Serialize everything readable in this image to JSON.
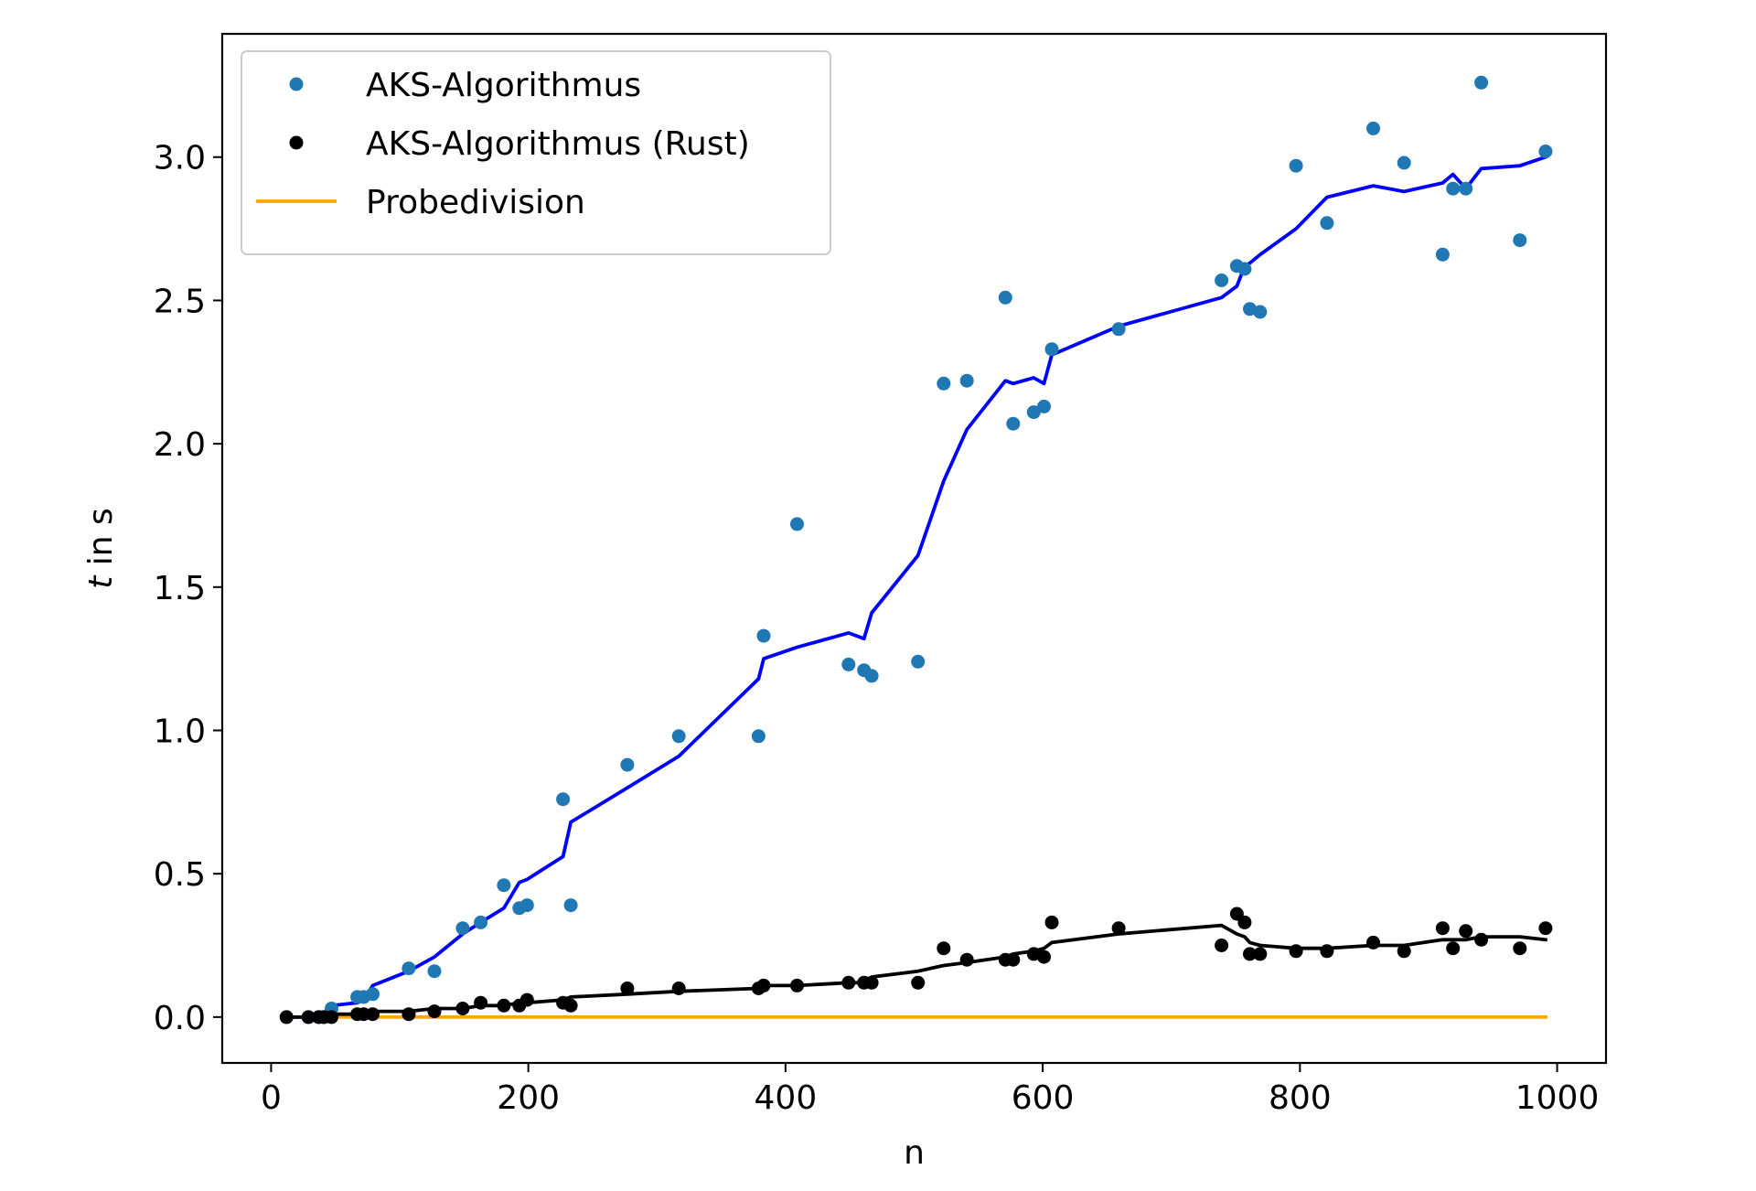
{
  "chart_data": {
    "type": "scatter",
    "xlabel": "n",
    "ylabel_italic": "t",
    "ylabel_rest": " in s",
    "xlim": [
      -38,
      1038
    ],
    "ylim": [
      -0.16,
      3.43
    ],
    "xticks": [
      0,
      200,
      400,
      600,
      800,
      1000
    ],
    "xtick_labels": [
      "0",
      "200",
      "400",
      "600",
      "800",
      "1000"
    ],
    "yticks": [
      0.0,
      0.5,
      1.0,
      1.5,
      2.0,
      2.5,
      3.0
    ],
    "ytick_labels": [
      "0.0",
      "0.5",
      "1.0",
      "1.5",
      "2.0",
      "2.5",
      "3.0"
    ],
    "grid": false,
    "legend_position": "upper-left",
    "series": [
      {
        "name": "AKS-Algorithmus",
        "kind": "scatter",
        "color": "#1f77b4",
        "points": [
          [
            12,
            0.0
          ],
          [
            29,
            0.0
          ],
          [
            37,
            0.0
          ],
          [
            41,
            0.0
          ],
          [
            47,
            0.03
          ],
          [
            67,
            0.07
          ],
          [
            72,
            0.07
          ],
          [
            79,
            0.08
          ],
          [
            107,
            0.17
          ],
          [
            127,
            0.16
          ],
          [
            149,
            0.31
          ],
          [
            163,
            0.33
          ],
          [
            181,
            0.46
          ],
          [
            193,
            0.38
          ],
          [
            199,
            0.39
          ],
          [
            227,
            0.76
          ],
          [
            233,
            0.39
          ],
          [
            277,
            0.88
          ],
          [
            317,
            0.98
          ],
          [
            379,
            0.98
          ],
          [
            383,
            1.33
          ],
          [
            409,
            1.72
          ],
          [
            449,
            1.23
          ],
          [
            461,
            1.21
          ],
          [
            467,
            1.19
          ],
          [
            503,
            1.24
          ],
          [
            523,
            2.21
          ],
          [
            541,
            2.22
          ],
          [
            571,
            2.51
          ],
          [
            577,
            2.07
          ],
          [
            593,
            2.11
          ],
          [
            601,
            2.13
          ],
          [
            607,
            2.33
          ],
          [
            659,
            2.4
          ],
          [
            739,
            2.57
          ],
          [
            751,
            2.62
          ],
          [
            757,
            2.61
          ],
          [
            761,
            2.47
          ],
          [
            769,
            2.46
          ],
          [
            797,
            2.97
          ],
          [
            821,
            2.77
          ],
          [
            857,
            3.1
          ],
          [
            881,
            2.98
          ],
          [
            911,
            2.66
          ],
          [
            919,
            2.89
          ],
          [
            929,
            2.89
          ],
          [
            941,
            3.26
          ],
          [
            971,
            2.71
          ],
          [
            991,
            3.02
          ]
        ]
      },
      {
        "name": "AKS-Algorithmus (Rust)",
        "kind": "scatter",
        "color": "#000000",
        "points": [
          [
            12,
            0.0
          ],
          [
            29,
            0.0
          ],
          [
            37,
            0.0
          ],
          [
            41,
            0.0
          ],
          [
            47,
            0.0
          ],
          [
            67,
            0.01
          ],
          [
            72,
            0.01
          ],
          [
            79,
            0.01
          ],
          [
            107,
            0.01
          ],
          [
            127,
            0.02
          ],
          [
            149,
            0.03
          ],
          [
            163,
            0.05
          ],
          [
            181,
            0.04
          ],
          [
            193,
            0.04
          ],
          [
            199,
            0.06
          ],
          [
            227,
            0.05
          ],
          [
            233,
            0.04
          ],
          [
            277,
            0.1
          ],
          [
            317,
            0.1
          ],
          [
            379,
            0.1
          ],
          [
            383,
            0.11
          ],
          [
            409,
            0.11
          ],
          [
            449,
            0.12
          ],
          [
            461,
            0.12
          ],
          [
            467,
            0.12
          ],
          [
            503,
            0.12
          ],
          [
            523,
            0.24
          ],
          [
            541,
            0.2
          ],
          [
            571,
            0.2
          ],
          [
            577,
            0.2
          ],
          [
            593,
            0.22
          ],
          [
            601,
            0.21
          ],
          [
            607,
            0.33
          ],
          [
            659,
            0.31
          ],
          [
            739,
            0.25
          ],
          [
            751,
            0.36
          ],
          [
            757,
            0.33
          ],
          [
            761,
            0.22
          ],
          [
            769,
            0.22
          ],
          [
            797,
            0.23
          ],
          [
            821,
            0.23
          ],
          [
            857,
            0.26
          ],
          [
            881,
            0.23
          ],
          [
            911,
            0.31
          ],
          [
            919,
            0.24
          ],
          [
            929,
            0.3
          ],
          [
            941,
            0.27
          ],
          [
            971,
            0.24
          ],
          [
            991,
            0.31
          ]
        ]
      },
      {
        "name": "Probedivision",
        "kind": "line",
        "color": "#ffa500",
        "points": [
          [
            12,
            0.0
          ],
          [
            991,
            0.0
          ]
        ]
      },
      {
        "name": "",
        "kind": "line",
        "color": "#0000ff",
        "points": [
          [
            12,
            0.0
          ],
          [
            29,
            0.0
          ],
          [
            37,
            0.01
          ],
          [
            41,
            0.01
          ],
          [
            47,
            0.04
          ],
          [
            67,
            0.05
          ],
          [
            72,
            0.06
          ],
          [
            79,
            0.11
          ],
          [
            107,
            0.16
          ],
          [
            127,
            0.21
          ],
          [
            149,
            0.29
          ],
          [
            163,
            0.33
          ],
          [
            181,
            0.38
          ],
          [
            193,
            0.47
          ],
          [
            199,
            0.48
          ],
          [
            227,
            0.56
          ],
          [
            233,
            0.68
          ],
          [
            277,
            0.8
          ],
          [
            317,
            0.91
          ],
          [
            379,
            1.18
          ],
          [
            383,
            1.25
          ],
          [
            409,
            1.29
          ],
          [
            449,
            1.34
          ],
          [
            461,
            1.32
          ],
          [
            467,
            1.41
          ],
          [
            503,
            1.61
          ],
          [
            523,
            1.87
          ],
          [
            541,
            2.05
          ],
          [
            571,
            2.22
          ],
          [
            577,
            2.21
          ],
          [
            593,
            2.23
          ],
          [
            601,
            2.21
          ],
          [
            607,
            2.31
          ],
          [
            659,
            2.41
          ],
          [
            739,
            2.51
          ],
          [
            751,
            2.55
          ],
          [
            757,
            2.62
          ],
          [
            761,
            2.63
          ],
          [
            769,
            2.66
          ],
          [
            797,
            2.75
          ],
          [
            821,
            2.86
          ],
          [
            857,
            2.9
          ],
          [
            881,
            2.88
          ],
          [
            911,
            2.91
          ],
          [
            919,
            2.94
          ],
          [
            929,
            2.89
          ],
          [
            941,
            2.96
          ],
          [
            971,
            2.97
          ],
          [
            991,
            3.0
          ]
        ]
      },
      {
        "name": "",
        "kind": "line",
        "color": "#000000",
        "points": [
          [
            12,
            0.0
          ],
          [
            29,
            0.0
          ],
          [
            37,
            0.0
          ],
          [
            41,
            0.0
          ],
          [
            47,
            0.01
          ],
          [
            67,
            0.01
          ],
          [
            72,
            0.01
          ],
          [
            79,
            0.02
          ],
          [
            107,
            0.02
          ],
          [
            127,
            0.03
          ],
          [
            149,
            0.03
          ],
          [
            163,
            0.04
          ],
          [
            181,
            0.04
          ],
          [
            193,
            0.05
          ],
          [
            199,
            0.05
          ],
          [
            227,
            0.06
          ],
          [
            233,
            0.07
          ],
          [
            277,
            0.08
          ],
          [
            317,
            0.09
          ],
          [
            379,
            0.1
          ],
          [
            383,
            0.11
          ],
          [
            409,
            0.11
          ],
          [
            449,
            0.12
          ],
          [
            461,
            0.12
          ],
          [
            467,
            0.14
          ],
          [
            503,
            0.16
          ],
          [
            523,
            0.18
          ],
          [
            541,
            0.19
          ],
          [
            571,
            0.21
          ],
          [
            577,
            0.22
          ],
          [
            593,
            0.23
          ],
          [
            601,
            0.24
          ],
          [
            607,
            0.26
          ],
          [
            659,
            0.29
          ],
          [
            739,
            0.32
          ],
          [
            751,
            0.29
          ],
          [
            757,
            0.28
          ],
          [
            761,
            0.26
          ],
          [
            769,
            0.25
          ],
          [
            797,
            0.24
          ],
          [
            821,
            0.24
          ],
          [
            857,
            0.25
          ],
          [
            881,
            0.25
          ],
          [
            911,
            0.27
          ],
          [
            919,
            0.27
          ],
          [
            929,
            0.27
          ],
          [
            941,
            0.28
          ],
          [
            971,
            0.28
          ],
          [
            991,
            0.27
          ]
        ]
      }
    ]
  }
}
